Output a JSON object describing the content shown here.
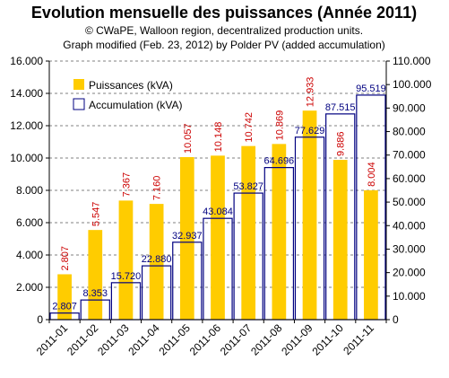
{
  "chart_data": {
    "type": "bar",
    "title": "Evolution mensuelle des puissances (Année 2011)",
    "subtitle_lines": [
      "© CWaPE, Walloon region, decentralized production units.",
      "Graph modified (Feb. 23, 2012) by Polder PV (added accumulation)"
    ],
    "categories": [
      "2011-01",
      "2011-02",
      "2011-03",
      "2011-04",
      "2011-05",
      "2011-06",
      "2011-07",
      "2011-08",
      "2011-09",
      "2011-10",
      "2011-11"
    ],
    "series": [
      {
        "name": "Puissances (kVA)",
        "axis": "left",
        "color": "#ffcc00",
        "label_color": "#cc0000",
        "values": [
          2807,
          5547,
          7367,
          7160,
          10057,
          10148,
          10742,
          10869,
          12933,
          9886,
          8004
        ],
        "labels": [
          "2.807",
          "5.547",
          "7.367",
          "7.160",
          "10.057",
          "10.148",
          "10.742",
          "10.869",
          "12.933",
          "9.886",
          "8.004"
        ]
      },
      {
        "name": "Accumulation (kVA)",
        "axis": "right",
        "color": "#000080",
        "label_color": "#000080",
        "values": [
          2807,
          8353,
          15720,
          22880,
          32937,
          43084,
          53827,
          64696,
          77629,
          87515,
          95519
        ],
        "labels": [
          "2.807",
          "8.353",
          "15.720",
          "22.880",
          "32.937",
          "43.084",
          "53.827",
          "64.696",
          "77.629",
          "87.515",
          "95.519"
        ]
      }
    ],
    "y_left": {
      "ylim": [
        0,
        16000
      ],
      "ticks": [
        0,
        2000,
        4000,
        6000,
        8000,
        10000,
        12000,
        14000,
        16000
      ],
      "tick_labels": [
        "0",
        "2.000",
        "4.000",
        "6.000",
        "8.000",
        "10.000",
        "12.000",
        "14.000",
        "16.000"
      ]
    },
    "y_right": {
      "ylim": [
        0,
        110000
      ],
      "ticks": [
        0,
        10000,
        20000,
        30000,
        40000,
        50000,
        60000,
        70000,
        80000,
        90000,
        100000,
        110000
      ],
      "tick_labels": [
        "0",
        "10.000",
        "20.000",
        "30.000",
        "40.000",
        "50.000",
        "60.000",
        "70.000",
        "80.000",
        "90.000",
        "100.000",
        "110.000"
      ]
    },
    "grid": true,
    "legend_position": "top-left"
  }
}
